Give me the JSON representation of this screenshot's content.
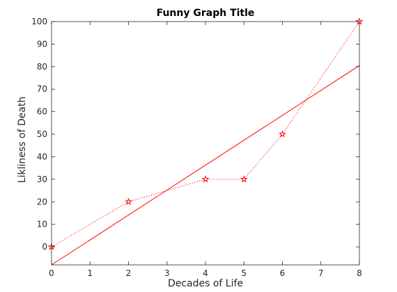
{
  "chart_data": {
    "type": "line",
    "title": "Funny Graph Title",
    "xlabel": "Decades of Life",
    "ylabel": "Likliness of Death",
    "xlim": [
      0,
      8
    ],
    "ylim": [
      -8,
      100
    ],
    "x_ticks": [
      "0",
      "1",
      "2",
      "3",
      "4",
      "5",
      "6",
      "7",
      "8"
    ],
    "y_ticks": [
      "0",
      "10",
      "20",
      "30",
      "40",
      "50",
      "60",
      "70",
      "80",
      "90",
      "100"
    ],
    "grid": false,
    "legend": "none",
    "series": [
      {
        "style": "dotted-star",
        "color": "#ff0000",
        "x": [
          0,
          2,
          4,
          5,
          6,
          8
        ],
        "y": [
          0,
          20,
          30,
          30,
          50,
          100
        ]
      },
      {
        "style": "solid",
        "color": "#ff0000",
        "x": [
          0,
          8
        ],
        "y": [
          -8,
          80.5
        ]
      }
    ]
  }
}
